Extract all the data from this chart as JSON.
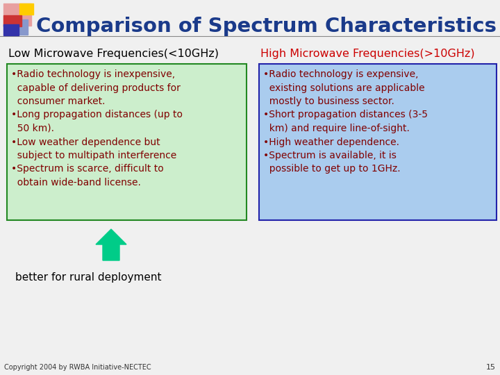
{
  "title": "Comparison of Spectrum Characteristics",
  "title_color": "#1a3a8a",
  "bg_color": "#f0f0f0",
  "left_header": "Low Microwave Frequencies(<10GHz)",
  "right_header": "High Microwave Frequencies(>10GHz)",
  "left_header_color": "#000000",
  "right_header_color": "#cc0000",
  "left_box_color": "#cceecc",
  "right_box_color": "#aaccee",
  "box_edge_color": "#228822",
  "right_box_edge_color": "#2222aa",
  "left_text_color": "#800000",
  "right_text_color": "#800000",
  "left_text": "•Radio technology is inexpensive,\n  capable of delivering products for\n  consumer market.\n•Long propagation distances (up to\n  50 km).\n•Low weather dependence but\n  subject to multipath interference\n•Spectrum is scarce, difficult to\n  obtain wide-band license.",
  "right_text": "•Radio technology is expensive,\n  existing solutions are applicable\n  mostly to business sector.\n•Short propagation distances (3-5\n  km) and require line-of-sight.\n•High weather dependence.\n•Spectrum is available, it is\n  possible to get up to 1GHz.",
  "arrow_color": "#00cc88",
  "arrow_label": "better for rural deployment",
  "copyright": "Copyright 2004 by RWBA Initiative-NECTEC",
  "page_num": "15",
  "logo_pink": "#e8a0a0",
  "logo_yellow": "#ffcc00",
  "logo_red": "#cc3333",
  "logo_blue": "#3333aa",
  "logo_lblue": "#8899cc",
  "title_line_color": "#888888"
}
